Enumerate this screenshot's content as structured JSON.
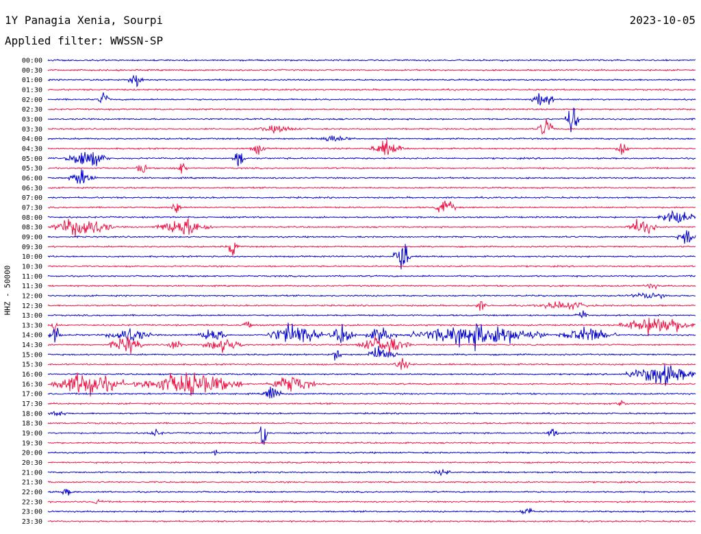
{
  "header": {
    "title": "1Y Panagia Xenia, Sourpi",
    "date": "2023-10-05",
    "filter_label": "Applied filter: WWSSN-SP"
  },
  "chart_data": {
    "type": "line",
    "title": "1Y Panagia Xenia, Sourpi",
    "date": "2023-10-05",
    "filter": "WWSSN-SP",
    "ylabel": "HHZ - 50000",
    "row_times": [
      "00:00",
      "00:30",
      "01:00",
      "01:30",
      "02:00",
      "02:30",
      "03:00",
      "03:30",
      "04:00",
      "04:30",
      "05:00",
      "05:30",
      "06:00",
      "06:30",
      "07:00",
      "07:30",
      "08:00",
      "08:30",
      "09:00",
      "09:30",
      "10:00",
      "10:30",
      "11:00",
      "11:30",
      "12:00",
      "12:30",
      "13:00",
      "13:30",
      "14:00",
      "14:30",
      "15:00",
      "15:30",
      "16:00",
      "16:30",
      "17:00",
      "17:30",
      "18:00",
      "18:30",
      "19:00",
      "19:30",
      "20:00",
      "20:30",
      "21:00",
      "21:30",
      "22:00",
      "22:30",
      "23:00",
      "23:30"
    ],
    "colors": {
      "even_rows": "#0000cc",
      "odd_rows": "#ee1144"
    },
    "grid": false
  }
}
